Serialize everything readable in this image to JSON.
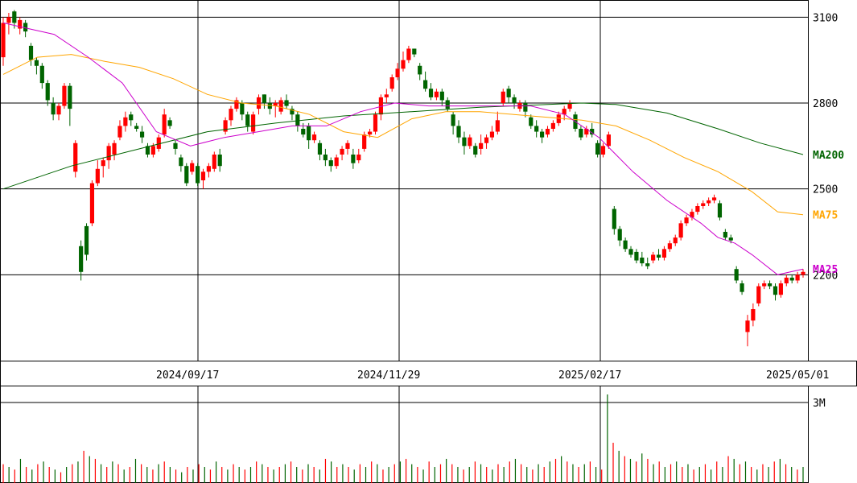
{
  "chart_data": [
    {
      "type": "candlestick",
      "panel": "price",
      "x_axis_type": "date",
      "x_ticks": [
        "2024/09/17",
        "2024/11/29",
        "2025/02/17",
        "2025/05/01"
      ],
      "y_ticks": [
        3100,
        2800,
        2500,
        2200
      ],
      "ylim": [
        1900,
        3160
      ],
      "grid": true,
      "up_color": "#ff0000",
      "down_color": "#006400",
      "moving_averages": [
        {
          "name": "MA200",
          "color": "#006400",
          "points": [
            [
              0,
              2500
            ],
            [
              40,
              2580
            ],
            [
              80,
              2640
            ],
            [
              120,
              2700
            ],
            [
              160,
              2730
            ],
            [
              200,
              2755
            ],
            [
              240,
              2770
            ],
            [
              280,
              2785
            ],
            [
              320,
              2795
            ],
            [
              340,
              2800
            ],
            [
              360,
              2795
            ],
            [
              390,
              2765
            ],
            [
              420,
              2710
            ],
            [
              445,
              2660
            ],
            [
              470,
              2620
            ]
          ]
        },
        {
          "name": "MA75",
          "color": "#ffa500",
          "points": [
            [
              0,
              2900
            ],
            [
              20,
              2960
            ],
            [
              40,
              2970
            ],
            [
              60,
              2945
            ],
            [
              80,
              2925
            ],
            [
              100,
              2885
            ],
            [
              120,
              2830
            ],
            [
              140,
              2800
            ],
            [
              160,
              2790
            ],
            [
              180,
              2760
            ],
            [
              200,
              2700
            ],
            [
              220,
              2680
            ],
            [
              240,
              2745
            ],
            [
              260,
              2770
            ],
            [
              280,
              2770
            ],
            [
              300,
              2760
            ],
            [
              320,
              2750
            ],
            [
              340,
              2740
            ],
            [
              360,
              2720
            ],
            [
              380,
              2670
            ],
            [
              400,
              2610
            ],
            [
              420,
              2560
            ],
            [
              440,
              2490
            ],
            [
              455,
              2420
            ],
            [
              470,
              2410
            ]
          ]
        },
        {
          "name": "MA25",
          "color": "#cc00cc",
          "points": [
            [
              0,
              3080
            ],
            [
              15,
              3060
            ],
            [
              30,
              3040
            ],
            [
              50,
              2960
            ],
            [
              70,
              2870
            ],
            [
              90,
              2700
            ],
            [
              110,
              2650
            ],
            [
              130,
              2680
            ],
            [
              150,
              2700
            ],
            [
              170,
              2720
            ],
            [
              190,
              2720
            ],
            [
              210,
              2770
            ],
            [
              230,
              2800
            ],
            [
              250,
              2790
            ],
            [
              270,
              2790
            ],
            [
              290,
              2790
            ],
            [
              310,
              2790
            ],
            [
              330,
              2760
            ],
            [
              350,
              2680
            ],
            [
              370,
              2560
            ],
            [
              390,
              2460
            ],
            [
              410,
              2380
            ],
            [
              420,
              2330
            ],
            [
              430,
              2310
            ],
            [
              440,
              2270
            ],
            [
              455,
              2200
            ],
            [
              470,
              2220
            ]
          ]
        }
      ],
      "candles": [
        [
          2960,
          3080,
          2930,
          3100
        ],
        [
          3080,
          3100,
          3040,
          3115
        ],
        [
          3120,
          3080,
          3060,
          3125
        ],
        [
          3060,
          3090,
          3040,
          3100
        ],
        [
          3080,
          3050,
          3030,
          3090
        ],
        [
          3000,
          2950,
          2930,
          3010
        ],
        [
          2950,
          2930,
          2900,
          2960
        ],
        [
          2930,
          2870,
          2850,
          2940
        ],
        [
          2870,
          2810,
          2790,
          2880
        ],
        [
          2800,
          2760,
          2740,
          2820
        ],
        [
          2760,
          2790,
          2740,
          2800
        ],
        [
          2790,
          2860,
          2780,
          2870
        ],
        [
          2860,
          2780,
          2720,
          2870
        ],
        [
          2560,
          2660,
          2540,
          2670
        ],
        [
          2300,
          2210,
          2180,
          2320
        ],
        [
          2370,
          2270,
          2250,
          2380
        ],
        [
          2380,
          2520,
          2370,
          2530
        ],
        [
          2520,
          2570,
          2510,
          2600
        ],
        [
          2580,
          2600,
          2540,
          2610
        ],
        [
          2600,
          2650,
          2570,
          2660
        ],
        [
          2620,
          2660,
          2600,
          2670
        ],
        [
          2680,
          2720,
          2670,
          2740
        ],
        [
          2720,
          2750,
          2700,
          2770
        ],
        [
          2760,
          2740,
          2720,
          2770
        ],
        [
          2720,
          2710,
          2700,
          2730
        ],
        [
          2700,
          2680,
          2660,
          2720
        ],
        [
          2650,
          2620,
          2610,
          2660
        ],
        [
          2620,
          2650,
          2610,
          2660
        ],
        [
          2640,
          2680,
          2630,
          2690
        ],
        [
          2690,
          2760,
          2680,
          2780
        ],
        [
          2740,
          2720,
          2710,
          2750
        ],
        [
          2660,
          2640,
          2620,
          2670
        ],
        [
          2610,
          2580,
          2560,
          2620
        ],
        [
          2580,
          2520,
          2510,
          2590
        ],
        [
          2560,
          2590,
          2550,
          2600
        ],
        [
          2580,
          2520,
          2510,
          2590
        ],
        [
          2530,
          2560,
          2500,
          2570
        ],
        [
          2560,
          2580,
          2540,
          2590
        ],
        [
          2570,
          2620,
          2560,
          2630
        ],
        [
          2620,
          2580,
          2560,
          2640
        ],
        [
          2700,
          2740,
          2690,
          2750
        ],
        [
          2740,
          2780,
          2720,
          2790
        ],
        [
          2780,
          2810,
          2770,
          2820
        ],
        [
          2800,
          2760,
          2740,
          2810
        ],
        [
          2760,
          2720,
          2700,
          2770
        ],
        [
          2700,
          2760,
          2690,
          2770
        ],
        [
          2780,
          2820,
          2760,
          2830
        ],
        [
          2830,
          2800,
          2780,
          2830
        ],
        [
          2800,
          2780,
          2760,
          2820
        ],
        [
          2790,
          2800,
          2750,
          2810
        ],
        [
          2770,
          2810,
          2760,
          2820
        ],
        [
          2810,
          2790,
          2780,
          2830
        ],
        [
          2780,
          2760,
          2740,
          2790
        ],
        [
          2760,
          2720,
          2700,
          2770
        ],
        [
          2710,
          2690,
          2680,
          2730
        ],
        [
          2720,
          2670,
          2640,
          2730
        ],
        [
          2670,
          2690,
          2660,
          2700
        ],
        [
          2660,
          2620,
          2600,
          2670
        ],
        [
          2620,
          2600,
          2580,
          2640
        ],
        [
          2600,
          2580,
          2560,
          2610
        ],
        [
          2580,
          2610,
          2570,
          2620
        ],
        [
          2620,
          2640,
          2600,
          2650
        ],
        [
          2640,
          2660,
          2620,
          2670
        ],
        [
          2620,
          2590,
          2570,
          2640
        ],
        [
          2600,
          2620,
          2590,
          2640
        ],
        [
          2640,
          2690,
          2630,
          2700
        ],
        [
          2690,
          2700,
          2680,
          2710
        ],
        [
          2700,
          2760,
          2690,
          2770
        ],
        [
          2760,
          2820,
          2740,
          2830
        ],
        [
          2820,
          2830,
          2800,
          2850
        ],
        [
          2850,
          2890,
          2840,
          2900
        ],
        [
          2890,
          2920,
          2880,
          2940
        ],
        [
          2920,
          2950,
          2910,
          2980
        ],
        [
          2950,
          2990,
          2940,
          3000
        ],
        [
          2990,
          2970,
          2960,
          2990
        ],
        [
          2930,
          2900,
          2880,
          2940
        ],
        [
          2880,
          2850,
          2840,
          2910
        ],
        [
          2850,
          2820,
          2810,
          2870
        ],
        [
          2820,
          2840,
          2810,
          2850
        ],
        [
          2840,
          2810,
          2790,
          2850
        ],
        [
          2810,
          2780,
          2770,
          2820
        ],
        [
          2760,
          2720,
          2690,
          2770
        ],
        [
          2720,
          2680,
          2660,
          2740
        ],
        [
          2680,
          2650,
          2620,
          2700
        ],
        [
          2650,
          2680,
          2640,
          2690
        ],
        [
          2650,
          2620,
          2610,
          2660
        ],
        [
          2640,
          2660,
          2620,
          2690
        ],
        [
          2660,
          2680,
          2640,
          2690
        ],
        [
          2680,
          2700,
          2670,
          2720
        ],
        [
          2700,
          2740,
          2690,
          2770
        ],
        [
          2800,
          2840,
          2790,
          2850
        ],
        [
          2850,
          2820,
          2800,
          2860
        ],
        [
          2820,
          2800,
          2780,
          2830
        ],
        [
          2780,
          2800,
          2770,
          2810
        ],
        [
          2800,
          2770,
          2750,
          2810
        ],
        [
          2750,
          2720,
          2710,
          2760
        ],
        [
          2720,
          2700,
          2680,
          2740
        ],
        [
          2700,
          2680,
          2660,
          2710
        ],
        [
          2690,
          2710,
          2680,
          2720
        ],
        [
          2710,
          2730,
          2700,
          2740
        ],
        [
          2730,
          2760,
          2720,
          2770
        ],
        [
          2760,
          2780,
          2740,
          2790
        ],
        [
          2780,
          2800,
          2770,
          2810
        ],
        [
          2760,
          2710,
          2700,
          2770
        ],
        [
          2710,
          2680,
          2670,
          2720
        ],
        [
          2690,
          2710,
          2680,
          2720
        ],
        [
          2710,
          2690,
          2680,
          2730
        ],
        [
          2660,
          2620,
          2610,
          2670
        ],
        [
          2620,
          2650,
          2610,
          2660
        ],
        [
          2650,
          2690,
          2640,
          2700
        ],
        [
          2430,
          2360,
          2340,
          2440
        ],
        [
          2360,
          2320,
          2300,
          2370
        ],
        [
          2320,
          2290,
          2280,
          2330
        ],
        [
          2290,
          2270,
          2260,
          2300
        ],
        [
          2280,
          2250,
          2240,
          2290
        ],
        [
          2260,
          2240,
          2230,
          2280
        ],
        [
          2240,
          2230,
          2220,
          2260
        ],
        [
          2250,
          2270,
          2240,
          2280
        ],
        [
          2270,
          2260,
          2250,
          2290
        ],
        [
          2260,
          2290,
          2250,
          2300
        ],
        [
          2290,
          2310,
          2280,
          2320
        ],
        [
          2310,
          2330,
          2300,
          2340
        ],
        [
          2330,
          2380,
          2320,
          2390
        ],
        [
          2380,
          2400,
          2370,
          2410
        ],
        [
          2400,
          2420,
          2390,
          2430
        ],
        [
          2420,
          2440,
          2410,
          2450
        ],
        [
          2440,
          2450,
          2430,
          2460
        ],
        [
          2450,
          2460,
          2440,
          2470
        ],
        [
          2460,
          2470,
          2450,
          2480
        ],
        [
          2450,
          2400,
          2390,
          2460
        ],
        [
          2350,
          2330,
          2320,
          2360
        ],
        [
          2330,
          2320,
          2310,
          2340
        ],
        [
          2220,
          2180,
          2170,
          2230
        ],
        [
          2170,
          2140,
          2130,
          2180
        ],
        [
          2000,
          2040,
          1950,
          2060
        ],
        [
          2040,
          2080,
          2020,
          2100
        ],
        [
          2100,
          2160,
          2090,
          2170
        ],
        [
          2160,
          2170,
          2150,
          2180
        ],
        [
          2170,
          2160,
          2150,
          2180
        ],
        [
          2160,
          2130,
          2110,
          2170
        ],
        [
          2130,
          2170,
          2120,
          2180
        ],
        [
          2170,
          2190,
          2160,
          2200
        ],
        [
          2190,
          2180,
          2170,
          2200
        ],
        [
          2180,
          2200,
          2170,
          2210
        ],
        [
          2200,
          2210,
          2190,
          2220
        ]
      ]
    },
    {
      "type": "bar",
      "panel": "volume",
      "y_ticks": [
        "3M"
      ],
      "ylim": [
        0,
        3.6
      ],
      "grid": true,
      "values": [
        0.7,
        0.6,
        0.5,
        0.9,
        0.6,
        0.5,
        0.7,
        0.8,
        0.6,
        0.5,
        0.4,
        0.6,
        0.7,
        0.8,
        1.2,
        1.0,
        0.9,
        0.7,
        0.6,
        0.8,
        0.7,
        0.5,
        0.6,
        0.9,
        0.7,
        0.6,
        0.5,
        0.7,
        0.8,
        0.6,
        0.5,
        0.4,
        0.6,
        0.5,
        0.7,
        0.6,
        0.5,
        0.8,
        0.6,
        0.5,
        0.7,
        0.6,
        0.5,
        0.6,
        0.8,
        0.7,
        0.6,
        0.5,
        0.6,
        0.7,
        0.8,
        0.6,
        0.5,
        0.7,
        0.6,
        0.5,
        0.9,
        0.8,
        0.6,
        0.7,
        0.6,
        0.5,
        0.7,
        0.6,
        0.8,
        0.7,
        0.5,
        0.6,
        0.7,
        0.8,
        0.9,
        0.7,
        0.6,
        0.5,
        0.8,
        0.6,
        0.7,
        0.9,
        0.7,
        0.6,
        0.5,
        0.6,
        0.8,
        0.7,
        0.6,
        0.5,
        0.7,
        0.6,
        0.8,
        0.9,
        0.7,
        0.6,
        0.5,
        0.7,
        0.6,
        0.8,
        0.9,
        1.0,
        0.8,
        0.7,
        0.6,
        0.7,
        0.8,
        0.6,
        0.5,
        3.3,
        1.5,
        1.2,
        1.0,
        0.9,
        0.8,
        1.1,
        0.9,
        0.7,
        0.8,
        0.6,
        0.7,
        0.8,
        0.6,
        0.7,
        0.5,
        0.6,
        0.7,
        0.5,
        0.8,
        0.6,
        1.0,
        0.9,
        0.7,
        0.8,
        0.6,
        0.5,
        0.7,
        0.6,
        0.8,
        0.9,
        0.7,
        0.6,
        0.5,
        0.6
      ]
    }
  ]
}
